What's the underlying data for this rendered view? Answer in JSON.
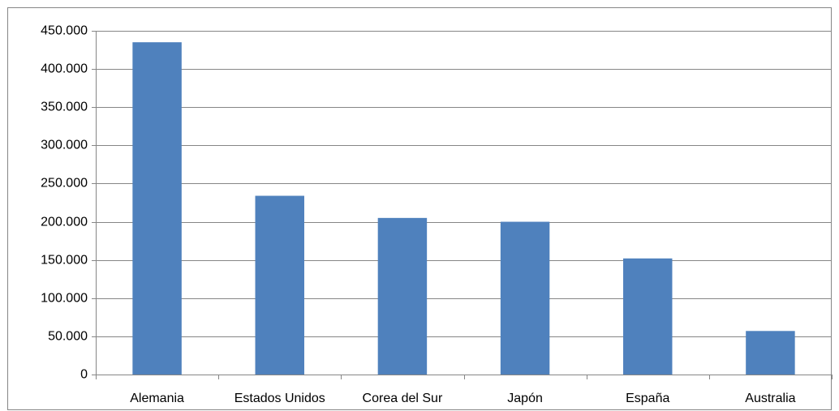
{
  "chart_data": {
    "type": "bar",
    "categories": [
      "Alemania",
      "Estados Unidos",
      "Corea del Sur",
      "Japón",
      "España",
      "Australia"
    ],
    "values": [
      435000,
      234000,
      205000,
      200000,
      152000,
      57000
    ],
    "color": "#4f81bd",
    "ylim": [
      0,
      450000
    ],
    "yticks": [
      0,
      {
        "value": 50000,
        "label": "50.000"
      },
      {
        "value": 100000,
        "label": "100.000"
      },
      {
        "value": 150000,
        "label": "150.000"
      },
      {
        "value": 200000,
        "label": "200.000"
      },
      {
        "value": 250000,
        "label": "250.000"
      },
      {
        "value": 300000,
        "label": "300.000"
      },
      {
        "value": 350000,
        "label": "350.000"
      },
      {
        "value": 400000,
        "label": "400.000"
      },
      {
        "value": 450000,
        "label": "450.000"
      }
    ],
    "grid": true
  }
}
